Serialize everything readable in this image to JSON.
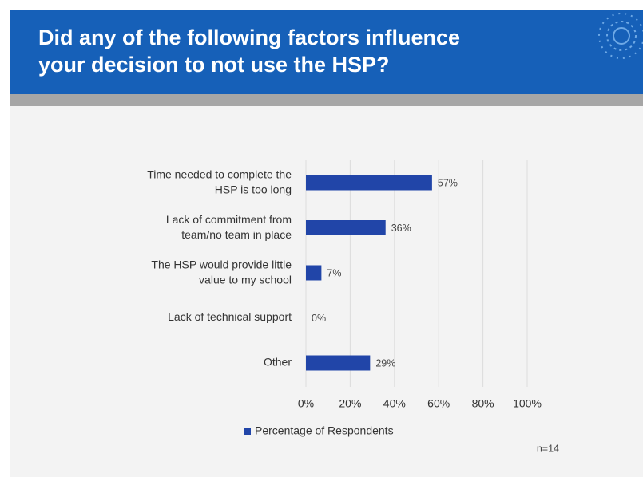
{
  "chart_data": {
    "type": "barh",
    "title": "Did any of the following factors influence\nyour decision to not use the HSP?",
    "categories": [
      "Time needed to complete the\nHSP is too long",
      "Lack of commitment from\nteam/no team in place",
      "The HSP would provide little\nvalue to my school",
      "Lack of technical support",
      "Other"
    ],
    "series": [
      {
        "name": "Percentage of Respondents",
        "color": "#2145a8",
        "values": [
          57,
          36,
          7,
          0,
          29
        ],
        "value_labels": [
          "57%",
          "36%",
          "7%",
          "0%",
          "29%"
        ]
      }
    ],
    "xlim": [
      0,
      100
    ],
    "xticks": [
      {
        "value": 0,
        "label": "0%"
      },
      {
        "value": 20,
        "label": "20%"
      },
      {
        "value": 40,
        "label": "40%"
      },
      {
        "value": 60,
        "label": "60%"
      },
      {
        "value": 80,
        "label": "80%"
      },
      {
        "value": 100,
        "label": "100%"
      }
    ],
    "grid": true,
    "legend": "bottom",
    "note": "n=14"
  }
}
